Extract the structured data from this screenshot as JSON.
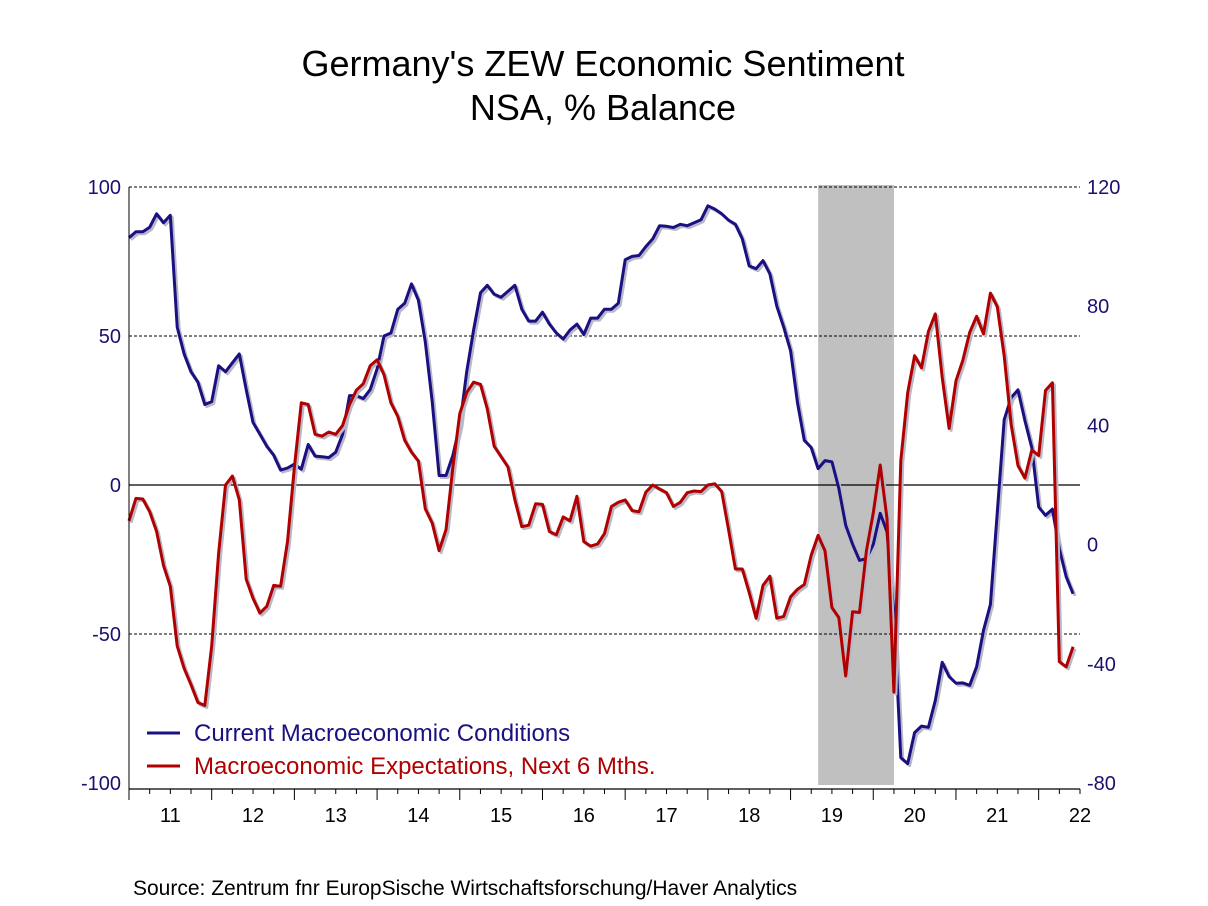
{
  "chart_data": {
    "type": "line",
    "title": "Germany's ZEW Economic Sentiment",
    "subtitle": "NSA, % Balance",
    "source": "Source:  Zentrum fnr EuropSische Wirtschaftsforschung/Haver Analytics",
    "x": {
      "start_month": "2010-12",
      "frequency": "monthly",
      "range": [
        2011,
        2022.5
      ],
      "tick_labels": [
        "11",
        "12",
        "13",
        "14",
        "15",
        "16",
        "17",
        "18",
        "19",
        "20",
        "21",
        "22"
      ]
    },
    "y_left": {
      "range": [
        -100,
        100
      ],
      "ticks": [
        100,
        50,
        0,
        -50,
        -100
      ],
      "tick_labels": [
        "100",
        "50",
        "0",
        "-50",
        "-100"
      ],
      "dashed_gridlines": [
        100,
        50,
        -50
      ],
      "solid_line": 0
    },
    "y_right": {
      "range": [
        -80,
        120
      ],
      "ticks": [
        120,
        80,
        40,
        0,
        -40,
        -80
      ],
      "tick_labels": [
        "120",
        "80",
        "40",
        "0",
        "-40",
        "-80"
      ]
    },
    "shading": [
      {
        "from": "2019-05",
        "to": "2020-04",
        "color": "#c0c0c0"
      }
    ],
    "legend_placement": "bottom-left",
    "axis_label_color": "#1a1070",
    "series": [
      {
        "name": "Current Macroeconomic Conditions",
        "axis": "left",
        "color": "#1a1080",
        "values": [
          83,
          85,
          85,
          86.5,
          91,
          88,
          90.5,
          53,
          44,
          38,
          34.5,
          27,
          28,
          40,
          38,
          41,
          44,
          32,
          21,
          17,
          13,
          10,
          5,
          5.7,
          7,
          5.3,
          13.6,
          9.7,
          9.5,
          9.2,
          11,
          17,
          30,
          30,
          29,
          32,
          39,
          50,
          51,
          59,
          61,
          67.5,
          62,
          48,
          28,
          3.2,
          3.2,
          10,
          20,
          38,
          52,
          64.5,
          67,
          64,
          63,
          65,
          67,
          59,
          55,
          55,
          58,
          54,
          51,
          49,
          52,
          54,
          50.5,
          56,
          56,
          59,
          59,
          61,
          75.6,
          76.7,
          77,
          80,
          82.6,
          87,
          86.8,
          86.4,
          87.5,
          87,
          88,
          89,
          93.7,
          92.6,
          91,
          88.9,
          87.5,
          82.6,
          73.5,
          72.6,
          75.3,
          70.8,
          60,
          53,
          45,
          27.6,
          15.0,
          12.6,
          5.5,
          8.2,
          7.8,
          -1.1,
          -13.5,
          -19.9,
          -25.3,
          -24.7,
          -19.9,
          -9.5,
          -15.7,
          -43.1,
          -91.5,
          -93.5,
          -83.1,
          -80.9,
          -81.3,
          -72.3,
          -59.5,
          -64.3,
          -66.5,
          -66.4,
          -67.2,
          -61.0,
          -48.8,
          -40.1,
          -9.1,
          21.9,
          29.3,
          31.9,
          21.6,
          12.5,
          -7.4,
          -10.2,
          -8.1,
          -21.4,
          -30.8,
          -36.5
        ]
      },
      {
        "name": "Macroeconomic Expectations, Next 6 Mths.",
        "axis": "right",
        "color": "#b00000",
        "values": [
          8,
          15.5,
          15.3,
          11,
          4.4,
          -7,
          -14,
          -34,
          -41.5,
          -47,
          -53,
          -54,
          -34,
          -3,
          20,
          23,
          15,
          -11.6,
          -18,
          -23,
          -20.7,
          -13.7,
          -14,
          1,
          26,
          47.6,
          47,
          37,
          36.4,
          37.8,
          37,
          40,
          47,
          51.8,
          54,
          60,
          62,
          57,
          47.6,
          43,
          35,
          31,
          28,
          12,
          7.2,
          -2,
          5,
          26,
          44,
          51,
          54.5,
          53.8,
          45.5,
          33,
          29.5,
          26,
          15,
          6,
          6.5,
          13.7,
          13.5,
          4.4,
          3.3,
          9.3,
          8,
          16.2,
          1,
          -0.5,
          0.2,
          3.7,
          12.8,
          14.2,
          15,
          11.4,
          11,
          17.6,
          20,
          18.7,
          17.4,
          12.8,
          14.2,
          17.4,
          18,
          17.8,
          20,
          20.4,
          17.8,
          5.1,
          -8.2,
          -8.2,
          -16.1,
          -24.7,
          -13.7,
          -10.6,
          -24.7,
          -24.1,
          -17.5,
          -15.0,
          -13.4,
          -3.6,
          3.1,
          -2.1,
          -21.1,
          -24.5,
          -44.1,
          -22.5,
          -22.8,
          -2.1,
          10.7,
          26.7,
          8.7,
          -49.5,
          28.2,
          51.0,
          63.4,
          59.3,
          71.5,
          77.4,
          56.1,
          39.0,
          55.0,
          61.8,
          71.2,
          76.6,
          70.7,
          84.4,
          79.8,
          63.3,
          40.4,
          26.5,
          22.3,
          31.7,
          29.9,
          51.7,
          54.3,
          -39.3,
          -41.0,
          -34.3
        ]
      }
    ]
  }
}
